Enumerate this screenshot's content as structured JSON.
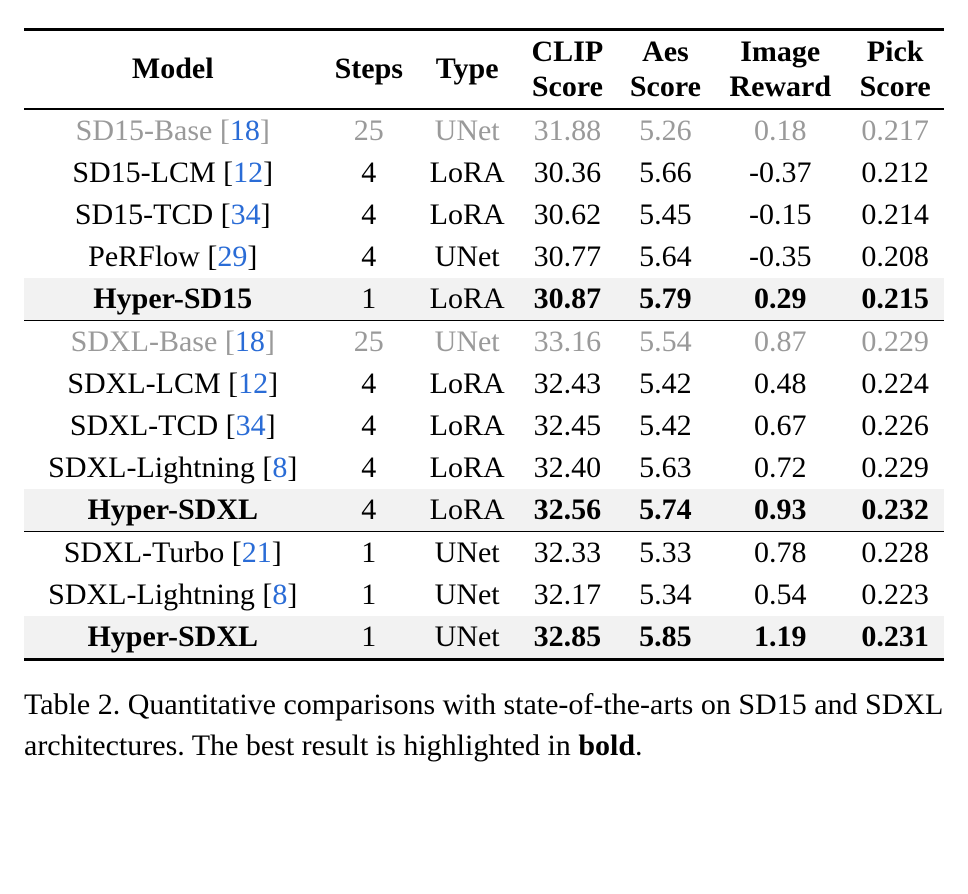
{
  "headers": {
    "model": "Model",
    "steps": "Steps",
    "type": "Type",
    "clip1": "CLIP",
    "clip2": "Score",
    "aes1": "Aes",
    "aes2": "Score",
    "img1": "Image",
    "img2": "Reward",
    "pick1": "Pick",
    "pick2": "Score"
  },
  "groups": [
    {
      "rows": [
        {
          "name": "SD15-Base",
          "cite": "18",
          "steps": "25",
          "type": "UNet",
          "clip": "31.88",
          "aes": "5.26",
          "img": "0.18",
          "pick": "0.217",
          "faded": true,
          "bold": false,
          "hl": false
        },
        {
          "name": "SD15-LCM",
          "cite": "12",
          "steps": "4",
          "type": "LoRA",
          "clip": "30.36",
          "aes": "5.66",
          "img": "-0.37",
          "pick": "0.212",
          "faded": false,
          "bold": false,
          "hl": false
        },
        {
          "name": "SD15-TCD",
          "cite": "34",
          "steps": "4",
          "type": "LoRA",
          "clip": "30.62",
          "aes": "5.45",
          "img": "-0.15",
          "pick": "0.214",
          "faded": false,
          "bold": false,
          "hl": false
        },
        {
          "name": "PeRFlow",
          "cite": "29",
          "steps": "4",
          "type": "UNet",
          "clip": "30.77",
          "aes": "5.64",
          "img": "-0.35",
          "pick": "0.208",
          "faded": false,
          "bold": false,
          "hl": false
        },
        {
          "name": "Hyper-SD15",
          "cite": "",
          "steps": "1",
          "type": "LoRA",
          "clip": "30.87",
          "aes": "5.79",
          "img": "0.29",
          "pick": "0.215",
          "faded": false,
          "bold": true,
          "hl": true
        }
      ]
    },
    {
      "rows": [
        {
          "name": "SDXL-Base",
          "cite": "18",
          "steps": "25",
          "type": "UNet",
          "clip": "33.16",
          "aes": "5.54",
          "img": "0.87",
          "pick": "0.229",
          "faded": true,
          "bold": false,
          "hl": false
        },
        {
          "name": "SDXL-LCM",
          "cite": "12",
          "steps": "4",
          "type": "LoRA",
          "clip": "32.43",
          "aes": "5.42",
          "img": "0.48",
          "pick": "0.224",
          "faded": false,
          "bold": false,
          "hl": false
        },
        {
          "name": "SDXL-TCD",
          "cite": "34",
          "steps": "4",
          "type": "LoRA",
          "clip": "32.45",
          "aes": "5.42",
          "img": "0.67",
          "pick": "0.226",
          "faded": false,
          "bold": false,
          "hl": false
        },
        {
          "name": "SDXL-Lightning",
          "cite": "8",
          "steps": "4",
          "type": "LoRA",
          "clip": "32.40",
          "aes": "5.63",
          "img": "0.72",
          "pick": "0.229",
          "faded": false,
          "bold": false,
          "hl": false
        },
        {
          "name": "Hyper-SDXL",
          "cite": "",
          "steps": "4",
          "type": "LoRA",
          "clip": "32.56",
          "aes": "5.74",
          "img": "0.93",
          "pick": "0.232",
          "faded": false,
          "bold": true,
          "hl": true
        }
      ]
    },
    {
      "rows": [
        {
          "name": "SDXL-Turbo",
          "cite": "21",
          "steps": "1",
          "type": "UNet",
          "clip": "32.33",
          "aes": "5.33",
          "img": "0.78",
          "pick": "0.228",
          "faded": false,
          "bold": false,
          "hl": false
        },
        {
          "name": "SDXL-Lightning",
          "cite": "8",
          "steps": "1",
          "type": "UNet",
          "clip": "32.17",
          "aes": "5.34",
          "img": "0.54",
          "pick": "0.223",
          "faded": false,
          "bold": false,
          "hl": false
        },
        {
          "name": "Hyper-SDXL",
          "cite": "",
          "steps": "1",
          "type": "UNet",
          "clip": "32.85",
          "aes": "5.85",
          "img": "1.19",
          "pick": "0.231",
          "faded": false,
          "bold": true,
          "hl": true
        }
      ]
    }
  ],
  "caption": {
    "prefix": "Table 2. Quantitative comparisons with state-of-the-arts on SD15 and SDXL architectures. The best result is highlighted in ",
    "bold_word": "bold",
    "suffix": "."
  },
  "colors": {
    "cite": "#2a6cd6",
    "faded": "#9a9a9a",
    "highlight": "#f2f2f2",
    "text": "#000000",
    "background": "#ffffff"
  }
}
